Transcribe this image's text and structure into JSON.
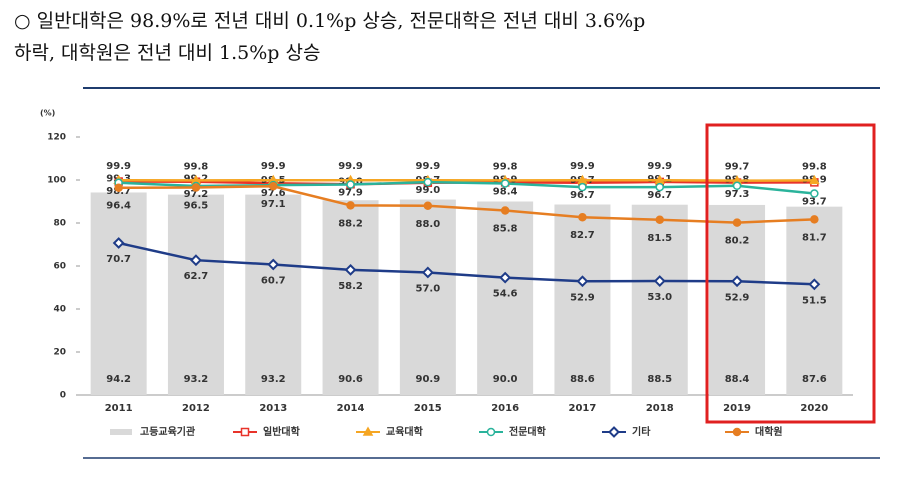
{
  "header": {
    "lines": [
      "○ 일반대학은 98.9%로 전년 대비 0.1%p 상승, 전문대학은 전년 대비 3.6%p",
      "하락, 대학원은 전년 대비 1.5%p 상승"
    ]
  },
  "chart_data": {
    "type": "bar",
    "y_label": "(%)",
    "categories": [
      "2011",
      "2012",
      "2013",
      "2014",
      "2015",
      "2016",
      "2017",
      "2018",
      "2019",
      "2020"
    ],
    "ylim": [
      0,
      120
    ],
    "yticks": [
      0,
      20,
      40,
      60,
      80,
      100,
      120
    ],
    "series": [
      {
        "name": "고등교육기관",
        "type": "bar",
        "color": "#d9d9d9",
        "values": [
          94.2,
          93.2,
          93.2,
          90.6,
          90.9,
          90.0,
          88.6,
          88.5,
          88.4,
          87.6
        ],
        "value_labels": [
          "94.2",
          "93.2",
          "93.2",
          "90.6",
          "90.9",
          "90.0",
          "88.6",
          "88.5",
          "88.4",
          "87.6"
        ]
      },
      {
        "name": "일반대학",
        "type": "line",
        "color": "#e8332a",
        "marker": "square",
        "values": [
          99.3,
          99.2,
          98.5,
          98.0,
          98.7,
          98.9,
          98.7,
          99.1,
          98.8,
          98.9
        ],
        "value_labels": [
          "99.3",
          "99.2",
          "98.5",
          "98.0",
          "98.7",
          "98.9",
          "98.7",
          "99.1",
          "98.8",
          "98.9"
        ]
      },
      {
        "name": "교육대학",
        "type": "line",
        "color": "#f5a623",
        "marker": "triangle",
        "values": [
          99.9,
          99.8,
          99.9,
          99.9,
          99.9,
          99.8,
          99.9,
          99.9,
          99.7,
          99.8
        ],
        "value_labels": [
          "99.9",
          "99.8",
          "99.9",
          "99.9",
          "99.9",
          "99.8",
          "99.9",
          "99.9",
          "99.7",
          "99.8"
        ]
      },
      {
        "name": "전문대학",
        "type": "line",
        "color": "#2ab39b",
        "marker": "circle-open",
        "values": [
          98.7,
          97.2,
          97.6,
          97.9,
          99.0,
          98.4,
          96.7,
          96.7,
          97.3,
          93.7
        ],
        "value_labels": [
          "98.7",
          "97.2",
          "97.6",
          "97.9",
          "99.0",
          "98.4",
          "96.7",
          "96.7",
          "97.3",
          "93.7"
        ]
      },
      {
        "name": "기타",
        "type": "line",
        "color": "#1f3c88",
        "marker": "diamond",
        "values": [
          70.7,
          62.7,
          60.7,
          58.2,
          57.0,
          54.6,
          52.9,
          53.0,
          52.9,
          51.5
        ],
        "value_labels": [
          "70.7",
          "62.7",
          "60.7",
          "58.2",
          "57.0",
          "54.6",
          "52.9",
          "53.0",
          "52.9",
          "51.5"
        ]
      },
      {
        "name": "대학원",
        "type": "line",
        "color": "#e67e22",
        "marker": "circle",
        "values": [
          96.4,
          96.5,
          97.1,
          88.2,
          88.0,
          85.8,
          82.7,
          81.5,
          80.2,
          81.7
        ],
        "value_labels": [
          "96.4",
          "96.5",
          "97.1",
          "88.2",
          "88.0",
          "85.8",
          "82.7",
          "81.5",
          "80.2",
          "81.7"
        ]
      }
    ]
  }
}
